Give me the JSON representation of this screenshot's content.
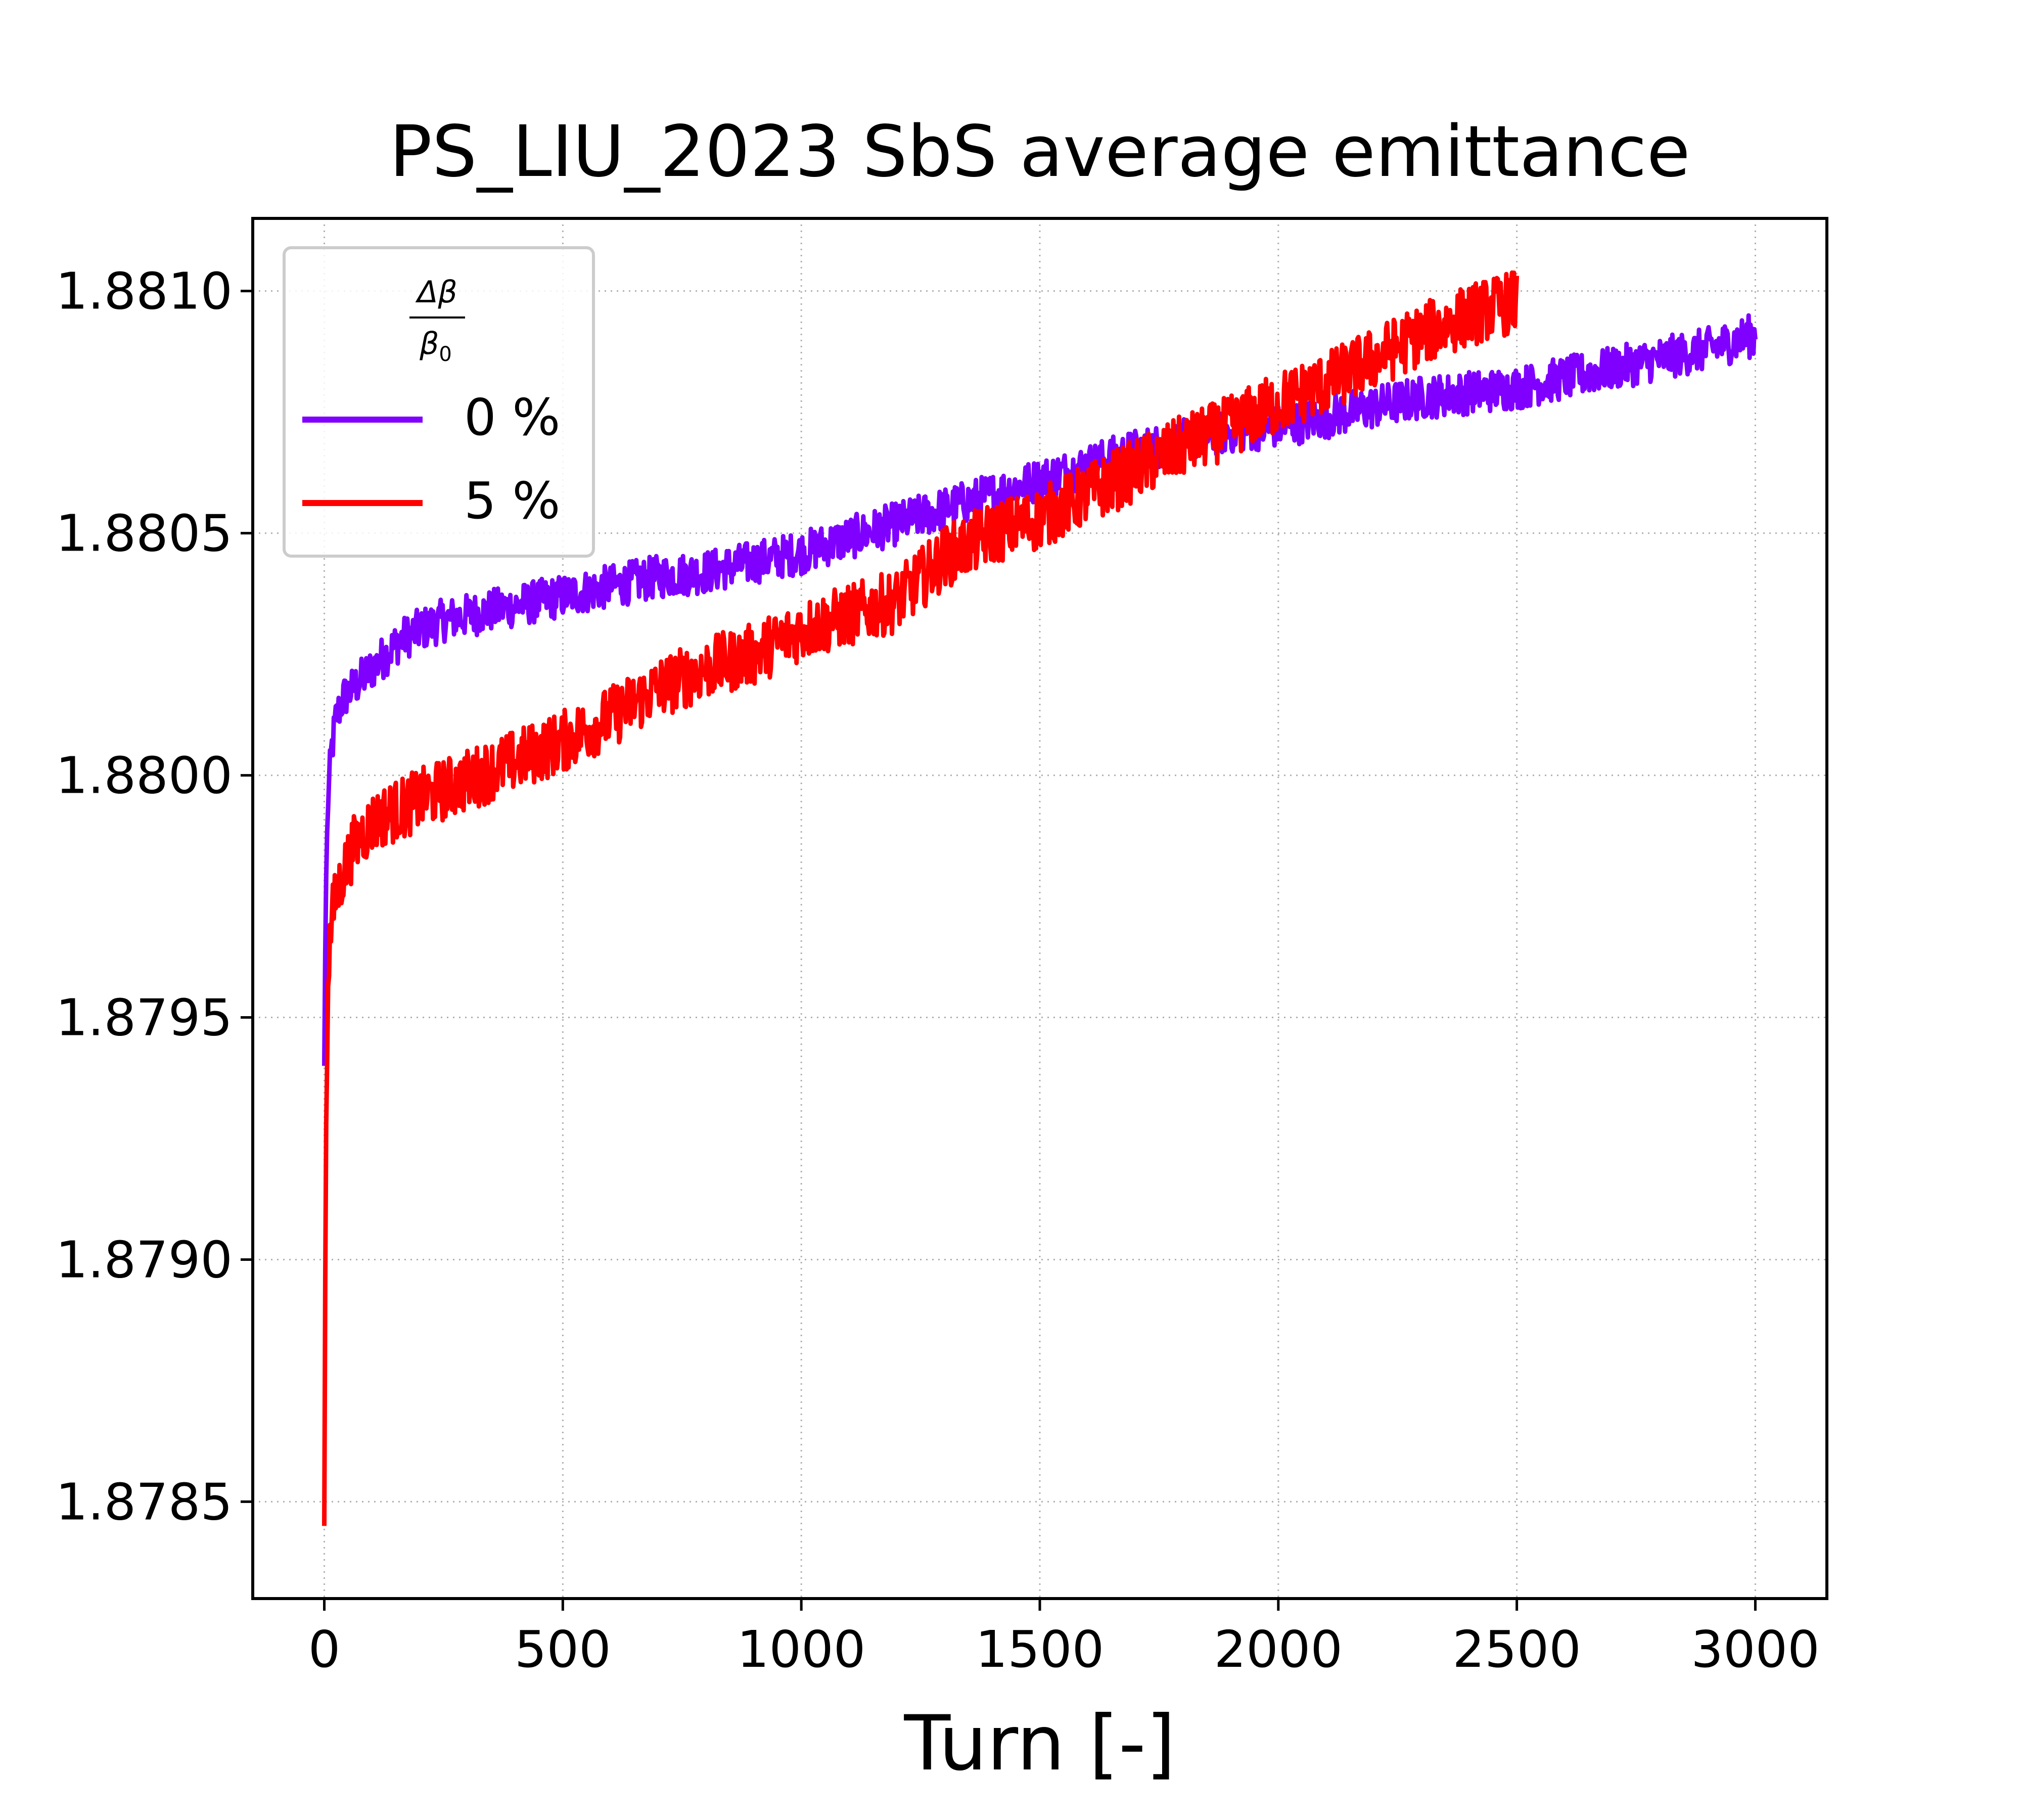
{
  "chart_data": {
    "type": "line",
    "title": "PS_LIU_2023 SbS average emittance",
    "xlabel": "Turn [-]",
    "ylabel": "",
    "xlim": [
      -150,
      3150
    ],
    "ylim": [
      1.8783,
      1.88115
    ],
    "x_ticks": [
      0,
      500,
      1000,
      1500,
      2000,
      2500,
      3000
    ],
    "x_tick_labels": [
      "0",
      "500",
      "1000",
      "1500",
      "2000",
      "2500",
      "3000"
    ],
    "y_ticks": [
      1.8785,
      1.879,
      1.8795,
      1.88,
      1.8805,
      1.881
    ],
    "y_tick_labels": [
      "1.8785",
      "1.8790",
      "1.8795",
      "1.8800",
      "1.8805",
      "1.8810"
    ],
    "grid": true,
    "legend": {
      "title_numerator": "Δβ",
      "title_denominator": "β",
      "title_denominator_subscript": "0",
      "position": "upper-left"
    },
    "series": [
      {
        "name": "0 %",
        "color": "#7f00ff",
        "noise": 4.5e-05,
        "x": [
          0,
          3,
          8,
          15,
          25,
          40,
          60,
          80,
          100,
          130,
          160,
          200,
          250,
          300,
          350,
          400,
          450,
          500,
          600,
          700,
          800,
          900,
          1000,
          1100,
          1200,
          1300,
          1400,
          1500,
          1600,
          1700,
          1800,
          1900,
          2000,
          2100,
          2200,
          2300,
          2400,
          2500,
          2600,
          2700,
          2800,
          2900,
          3000
        ],
        "y": [
          1.8794,
          1.87975,
          1.87995,
          1.88005,
          1.88012,
          1.88016,
          1.88018,
          1.8802,
          1.88022,
          1.88025,
          1.88028,
          1.8803,
          1.88032,
          1.88033,
          1.88034,
          1.88035,
          1.88036,
          1.88037,
          1.88039,
          1.88041,
          1.88042,
          1.88044,
          1.88046,
          1.88049,
          1.88052,
          1.88055,
          1.88058,
          1.88061,
          1.88064,
          1.88067,
          1.88069,
          1.88071,
          1.88072,
          1.88074,
          1.88076,
          1.88078,
          1.88079,
          1.8808,
          1.88082,
          1.88084,
          1.88086,
          1.88088,
          1.88091
        ]
      },
      {
        "name": "5 %",
        "color": "#ff0000",
        "noise": 6.5e-05,
        "x": [
          0,
          3,
          8,
          15,
          25,
          40,
          60,
          80,
          100,
          130,
          160,
          200,
          250,
          300,
          350,
          400,
          450,
          500,
          600,
          700,
          800,
          900,
          1000,
          1100,
          1200,
          1300,
          1400,
          1500,
          1600,
          1700,
          1800,
          1900,
          2000,
          2100,
          2200,
          2300,
          2400,
          2500
        ],
        "y": [
          1.87845,
          1.8792,
          1.8796,
          1.8797,
          1.87975,
          1.8798,
          1.87985,
          1.87988,
          1.8799,
          1.87992,
          1.87993,
          1.87995,
          1.87997,
          1.87999,
          1.88001,
          1.88003,
          1.88005,
          1.88007,
          1.88012,
          1.88018,
          1.88022,
          1.88025,
          1.8803,
          1.88033,
          1.88036,
          1.88045,
          1.8805,
          1.88053,
          1.88058,
          1.88063,
          1.88068,
          1.88072,
          1.88077,
          1.88081,
          1.88086,
          1.88091,
          1.88095,
          1.88098
        ]
      }
    ]
  }
}
